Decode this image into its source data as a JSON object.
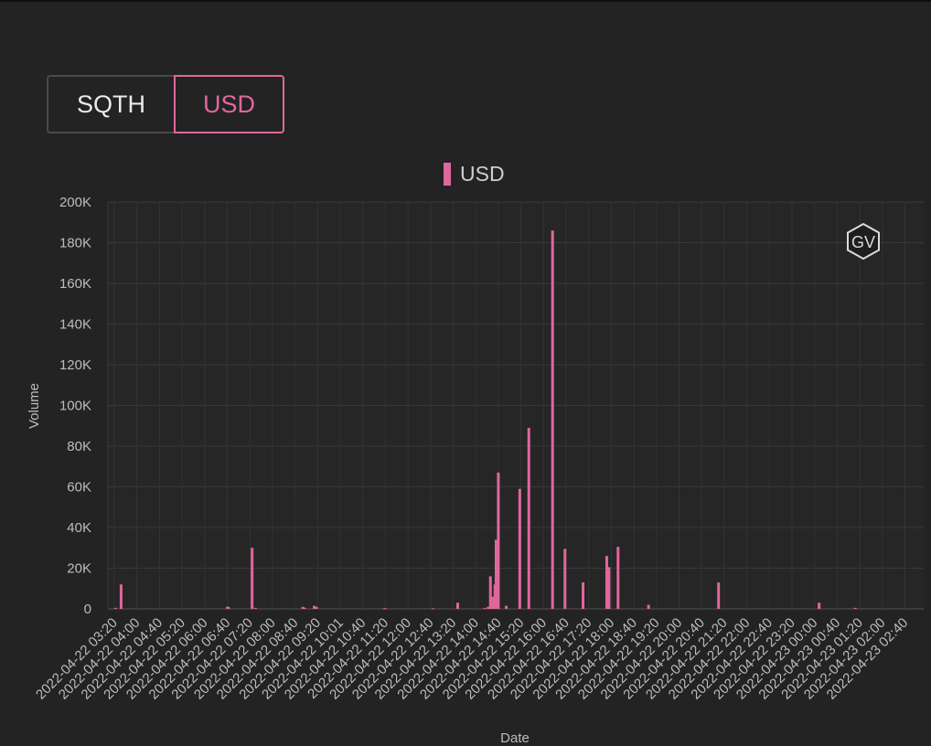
{
  "toggle": {
    "options": [
      "SQTH",
      "USD"
    ],
    "selected": "USD"
  },
  "watermark": "GV",
  "colors": {
    "bar": "#e0679d",
    "background": "#232323",
    "grid": "#383838"
  },
  "chart_data": {
    "type": "bar",
    "legend": [
      "USD"
    ],
    "legend_placement": "top-center",
    "xlabel": "Date",
    "ylabel": "Volume",
    "ylim": [
      0,
      200000
    ],
    "grid": true,
    "y_ticks": [
      "0",
      "20K",
      "40K",
      "60K",
      "80K",
      "100K",
      "120K",
      "140K",
      "160K",
      "180K",
      "200K"
    ],
    "x_ticks": [
      "2022-04-22 03:20",
      "2022-04-22 04:00",
      "2022-04-22 04:40",
      "2022-04-22 05:20",
      "2022-04-22 06:00",
      "2022-04-22 06:40",
      "2022-04-22 07:20",
      "2022-04-22 08:00",
      "2022-04-22 08:40",
      "2022-04-22 09:20",
      "2022-04-22 10:01",
      "2022-04-22 10:40",
      "2022-04-22 11:20",
      "2022-04-22 12:00",
      "2022-04-22 12:40",
      "2022-04-22 13:20",
      "2022-04-22 14:00",
      "2022-04-22 14:40",
      "2022-04-22 15:20",
      "2022-04-22 16:00",
      "2022-04-22 16:40",
      "2022-04-22 17:20",
      "2022-04-22 18:00",
      "2022-04-22 18:40",
      "2022-04-22 19:20",
      "2022-04-22 20:00",
      "2022-04-22 20:40",
      "2022-04-22 21:20",
      "2022-04-22 22:00",
      "2022-04-22 22:40",
      "2022-04-22 23:20",
      "2022-04-23 00:00",
      "2022-04-23 00:40",
      "2022-04-23 01:20",
      "2022-04-23 02:00",
      "2022-04-23 02:40"
    ],
    "series": [
      {
        "name": "USD",
        "points": [
          {
            "x": "2022-04-22 03:22",
            "y": 500
          },
          {
            "x": "2022-04-22 03:32",
            "y": 12000
          },
          {
            "x": "2022-04-22 06:40",
            "y": 1000
          },
          {
            "x": "2022-04-22 06:42",
            "y": 1000
          },
          {
            "x": "2022-04-22 07:24",
            "y": 30000
          },
          {
            "x": "2022-04-22 07:30",
            "y": 500
          },
          {
            "x": "2022-04-22 08:54",
            "y": 1000
          },
          {
            "x": "2022-04-22 08:57",
            "y": 500
          },
          {
            "x": "2022-04-22 09:14",
            "y": 1500
          },
          {
            "x": "2022-04-22 09:18",
            "y": 1000
          },
          {
            "x": "2022-04-22 11:18",
            "y": 300
          },
          {
            "x": "2022-04-22 11:20",
            "y": 300
          },
          {
            "x": "2022-04-22 12:44",
            "y": 300
          },
          {
            "x": "2022-04-22 13:28",
            "y": 3000
          },
          {
            "x": "2022-04-22 14:16",
            "y": 500
          },
          {
            "x": "2022-04-22 14:22",
            "y": 1000
          },
          {
            "x": "2022-04-22 14:26",
            "y": 16000
          },
          {
            "x": "2022-04-22 14:30",
            "y": 6000
          },
          {
            "x": "2022-04-22 14:34",
            "y": 12000
          },
          {
            "x": "2022-04-22 14:36",
            "y": 34000
          },
          {
            "x": "2022-04-22 14:40",
            "y": 67000
          },
          {
            "x": "2022-04-22 14:54",
            "y": 1500
          },
          {
            "x": "2022-04-22 15:18",
            "y": 59000
          },
          {
            "x": "2022-04-22 15:34",
            "y": 89000
          },
          {
            "x": "2022-04-22 16:16",
            "y": 186000
          },
          {
            "x": "2022-04-22 16:38",
            "y": 29500
          },
          {
            "x": "2022-04-22 17:10",
            "y": 13000
          },
          {
            "x": "2022-04-22 17:52",
            "y": 26000
          },
          {
            "x": "2022-04-22 17:56",
            "y": 20500
          },
          {
            "x": "2022-04-22 18:12",
            "y": 30500
          },
          {
            "x": "2022-04-22 19:06",
            "y": 2000
          },
          {
            "x": "2022-04-22 21:10",
            "y": 13000
          },
          {
            "x": "2022-04-23 00:08",
            "y": 3000
          },
          {
            "x": "2022-04-23 01:12",
            "y": 500
          }
        ]
      }
    ]
  }
}
